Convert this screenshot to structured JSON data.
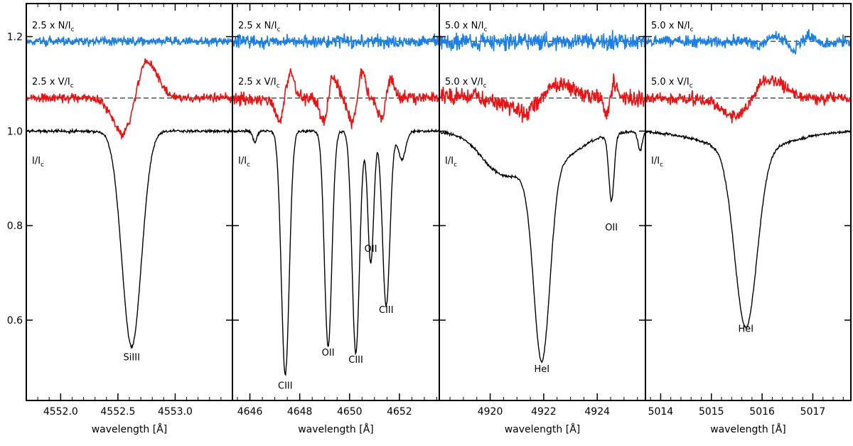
{
  "chart_data": {
    "type": "line",
    "shared_y": {
      "ylim": [
        0.43,
        1.27
      ],
      "ticks": [
        {
          "v": 0.6,
          "label": "0.6"
        },
        {
          "v": 0.8,
          "label": "0.8"
        },
        {
          "v": 1.0,
          "label": "1.0"
        },
        {
          "v": 1.2,
          "label": "1.2"
        }
      ]
    },
    "colors": {
      "I": "#000000",
      "V": "#ee1111",
      "N": "#1a7fe6",
      "ref": "#000000"
    },
    "panels": [
      {
        "xlabel": "wavelength [Å]",
        "xlim": [
          4551.7,
          4553.5
        ],
        "xticks": [
          {
            "v": 4552.0,
            "label": "4552.0"
          },
          {
            "v": 4552.5,
            "label": "4552.5"
          },
          {
            "v": 4553.0,
            "label": "4553.0"
          }
        ],
        "n_label": "2.5 x N/I",
        "v_label": "2.5 x V/I",
        "i_label": "I/I",
        "label_sub": "c",
        "n_level": 1.19,
        "v_level": 1.07,
        "noise_n": 0.008,
        "noise_v": 0.008,
        "lines": [
          {
            "center": 4552.62,
            "depth": 0.455,
            "width": 0.085,
            "label": "SiIII",
            "label_value": 0.515
          }
        ],
        "broad": [],
        "zeeman": [
          {
            "center": 4552.65,
            "amp": 0.075,
            "width": 0.11
          }
        ],
        "n_wiggle": 0.0
      },
      {
        "xlabel": "wavelength [Å]",
        "xlim": [
          4645.3,
          4653.6
        ],
        "xticks": [
          {
            "v": 4646,
            "label": "4646"
          },
          {
            "v": 4648,
            "label": "4648"
          },
          {
            "v": 4650,
            "label": "4650"
          },
          {
            "v": 4652,
            "label": "4652"
          }
        ],
        "n_label": "2.5 x N/I",
        "v_label": "2.5 x V/I",
        "i_label": "I/I",
        "label_sub": "c",
        "n_level": 1.19,
        "v_level": 1.07,
        "noise_n": 0.012,
        "noise_v": 0.012,
        "lines": [
          {
            "center": 4647.42,
            "depth": 0.515,
            "width": 0.16,
            "label": "CIII",
            "label_value": 0.455
          },
          {
            "center": 4649.14,
            "depth": 0.455,
            "width": 0.15,
            "label": "OII",
            "label_value": 0.525
          },
          {
            "center": 4650.25,
            "depth": 0.47,
            "width": 0.15,
            "label": "CIII",
            "label_value": 0.51
          },
          {
            "center": 4650.85,
            "depth": 0.28,
            "width": 0.12,
            "label": "OII",
            "label_value": 0.745
          },
          {
            "center": 4651.47,
            "depth": 0.37,
            "width": 0.15,
            "label": "CIII",
            "label_value": 0.615
          },
          {
            "center": 4646.2,
            "depth": 0.025,
            "width": 0.08
          },
          {
            "center": 4652.1,
            "depth": 0.06,
            "width": 0.15
          }
        ],
        "broad": [],
        "zeeman": [
          {
            "center": 4647.4,
            "amp": 0.05,
            "width": 0.22
          },
          {
            "center": 4649.15,
            "amp": 0.045,
            "width": 0.2
          },
          {
            "center": 4650.3,
            "amp": 0.05,
            "width": 0.2
          },
          {
            "center": 4651.45,
            "amp": 0.04,
            "width": 0.2
          }
        ],
        "n_wiggle": 0.0
      },
      {
        "xlabel": "wavelength [Å]",
        "xlim": [
          4918.1,
          4925.8
        ],
        "xticks": [
          {
            "v": 4920,
            "label": "4920"
          },
          {
            "v": 4922,
            "label": "4922"
          },
          {
            "v": 4924,
            "label": "4924"
          }
        ],
        "n_label": "5.0 x N/I",
        "v_label": "5.0 x V/I",
        "i_label": "I/I",
        "label_sub": "c",
        "n_level": 1.19,
        "v_level": 1.07,
        "noise_n": 0.016,
        "noise_v": 0.016,
        "lines": [
          {
            "center": 4921.93,
            "depth": 0.4,
            "width": 0.3,
            "label": "HeI",
            "label_value": 0.49
          },
          {
            "center": 4924.53,
            "depth": 0.14,
            "width": 0.1,
            "label": "OII",
            "label_value": 0.79
          },
          {
            "center": 4925.6,
            "depth": 0.04,
            "width": 0.08
          }
        ],
        "broad": [
          {
            "center": 4921.6,
            "depth": 0.09,
            "width": 1.3
          },
          {
            "center": 4920.2,
            "depth": 0.035,
            "width": 0.6
          }
        ],
        "zeeman": [
          {
            "center": 4921.9,
            "amp": 0.03,
            "width": 0.7
          },
          {
            "center": 4924.5,
            "amp": 0.03,
            "width": 0.15
          }
        ],
        "n_wiggle": 0.0
      },
      {
        "xlabel": "wavelength [Å]",
        "xlim": [
          5013.7,
          5017.75
        ],
        "xticks": [
          {
            "v": 5014,
            "label": "5014"
          },
          {
            "v": 5015,
            "label": "5015"
          },
          {
            "v": 5016,
            "label": "5016"
          },
          {
            "v": 5017,
            "label": "5017"
          }
        ],
        "n_label": "5.0 x N/I",
        "v_label": "5.0 x V/I",
        "i_label": "I/I",
        "label_sub": "c",
        "n_level": 1.19,
        "v_level": 1.07,
        "noise_n": 0.011,
        "noise_v": 0.011,
        "lines": [
          {
            "center": 5015.68,
            "depth": 0.375,
            "width": 0.22,
            "label": "HeI",
            "label_value": 0.575
          }
        ],
        "broad": [
          {
            "center": 5015.68,
            "depth": 0.04,
            "width": 0.8
          }
        ],
        "zeeman": [
          {
            "center": 5015.8,
            "amp": 0.04,
            "width": 0.35
          }
        ],
        "n_wiggle": 0.015
      }
    ]
  }
}
